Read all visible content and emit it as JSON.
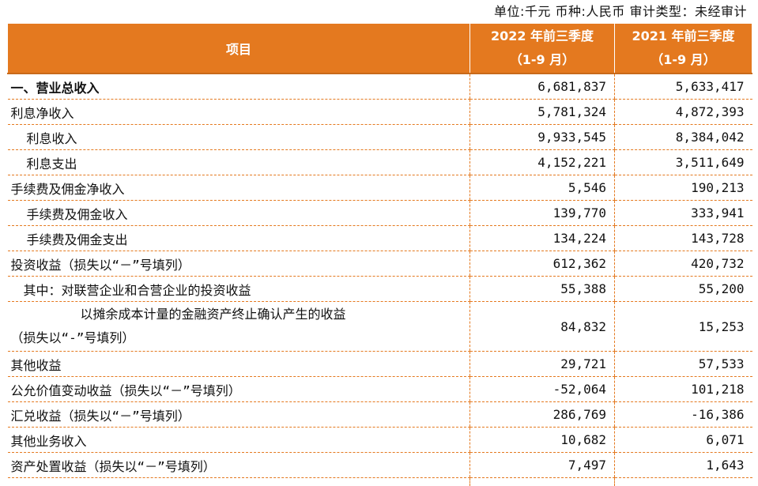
{
  "header_note": "单位:千元 币种:人民币 审计类型：未经审计",
  "table": {
    "col_item": "项目",
    "col_2022_line1": "2022 年前三季度",
    "col_2022_line2": "（1-9 月）",
    "col_2021_line1": "2021 年前三季度",
    "col_2021_line2": "（1-9 月）",
    "rows": [
      {
        "label": "一、营业总收入",
        "v2022": "6,681,837",
        "v2021": "5,633,417"
      },
      {
        "label": "利息净收入",
        "v2022": "5,781,324",
        "v2021": "4,872,393"
      },
      {
        "label": "利息收入",
        "v2022": "9,933,545",
        "v2021": "8,384,042"
      },
      {
        "label": "利息支出",
        "v2022": "4,152,221",
        "v2021": "3,511,649"
      },
      {
        "label": "手续费及佣金净收入",
        "v2022": "5,546",
        "v2021": "190,213"
      },
      {
        "label": "手续费及佣金收入",
        "v2022": "139,770",
        "v2021": "333,941"
      },
      {
        "label": "手续费及佣金支出",
        "v2022": "134,224",
        "v2021": "143,728"
      },
      {
        "label": "投资收益（损失以“－”号填列）",
        "v2022": "612,362",
        "v2021": "420,732"
      },
      {
        "label": "其中：对联营企业和合营企业的投资收益",
        "v2022": "55,388",
        "v2021": "55,200"
      },
      {
        "label_line1": "以摊余成本计量的金融资产终止确认产生的收益",
        "label_line2": "（损失以“-”号填列）",
        "v2022": "84,832",
        "v2021": "15,253"
      },
      {
        "label": "其他收益",
        "v2022": "29,721",
        "v2021": "57,533"
      },
      {
        "label": "公允价值变动收益（损失以“－”号填列）",
        "v2022": "-52,064",
        "v2021": "101,218"
      },
      {
        "label": "汇兑收益（损失以“－”号填列）",
        "v2022": "286,769",
        "v2021": "-16,386"
      },
      {
        "label": "其他业务收入",
        "v2022": "10,682",
        "v2021": "6,071"
      },
      {
        "label": "资产处置收益（损失以“－”号填列）",
        "v2022": "7,497",
        "v2021": "1,643"
      }
    ]
  }
}
